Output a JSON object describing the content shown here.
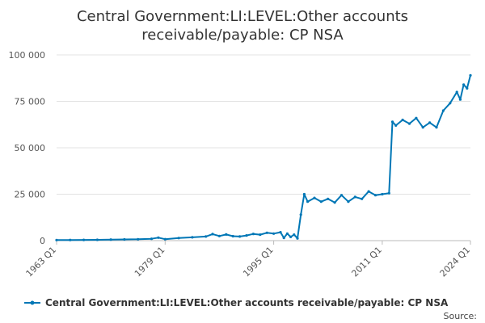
{
  "chart_data": {
    "type": "line",
    "title_lines": [
      "Central Government:LI:LEVEL:Other accounts",
      "receivable/payable: CP NSA"
    ],
    "xlabel": "",
    "ylabel": "",
    "x_tick_labels": [
      "1963 Q1",
      "1979 Q1",
      "1995 Q1",
      "2011 Q1",
      "2024 Q1"
    ],
    "y_tick_labels": [
      "0",
      "25 000",
      "50 000",
      "75 000",
      "100 000"
    ],
    "y_ticks": [
      0,
      25000,
      50000,
      75000,
      100000
    ],
    "ylim": [
      0,
      100000
    ],
    "xlim": [
      "1963 Q1",
      "2024 Q1"
    ],
    "grid": "horizontal",
    "legend_position": "bottom",
    "source_label": "Source:",
    "series": [
      {
        "name": "Central Government:LI:LEVEL:Other accounts receivable/payable: CP NSA",
        "color": "#0077b6",
        "points": [
          [
            "1963 Q1",
            300
          ],
          [
            "1965 Q1",
            350
          ],
          [
            "1967 Q1",
            400
          ],
          [
            "1969 Q1",
            450
          ],
          [
            "1971 Q1",
            550
          ],
          [
            "1973 Q1",
            650
          ],
          [
            "1975 Q1",
            750
          ],
          [
            "1977 Q1",
            1000
          ],
          [
            "1978 Q1",
            1600
          ],
          [
            "1979 Q1",
            800
          ],
          [
            "1981 Q1",
            1400
          ],
          [
            "1983 Q1",
            1800
          ],
          [
            "1985 Q1",
            2200
          ],
          [
            "1986 Q1",
            3500
          ],
          [
            "1987 Q1",
            2500
          ],
          [
            "1988 Q1",
            3300
          ],
          [
            "1989 Q1",
            2400
          ],
          [
            "1990 Q1",
            2200
          ],
          [
            "1991 Q1",
            2800
          ],
          [
            "1992 Q1",
            3600
          ],
          [
            "1993 Q1",
            3200
          ],
          [
            "1994 Q1",
            4200
          ],
          [
            "1995 Q1",
            3800
          ],
          [
            "1996 Q1",
            4500
          ],
          [
            "1996 Q3",
            1500
          ],
          [
            "1997 Q1",
            3800
          ],
          [
            "1997 Q3",
            2000
          ],
          [
            "1998 Q1",
            3200
          ],
          [
            "1998 Q3",
            1200
          ],
          [
            "1999 Q1",
            14000
          ],
          [
            "1999 Q3",
            25000
          ],
          [
            "2000 Q1",
            21000
          ],
          [
            "2001 Q1",
            23000
          ],
          [
            "2002 Q1",
            21000
          ],
          [
            "2003 Q1",
            22500
          ],
          [
            "2004 Q1",
            20500
          ],
          [
            "2005 Q1",
            24500
          ],
          [
            "2006 Q1",
            21000
          ],
          [
            "2007 Q1",
            23500
          ],
          [
            "2008 Q1",
            22500
          ],
          [
            "2009 Q1",
            26500
          ],
          [
            "2010 Q1",
            24500
          ],
          [
            "2011 Q1",
            25000
          ],
          [
            "2012 Q1",
            25500
          ],
          [
            "2012 Q3",
            64000
          ],
          [
            "2013 Q1",
            62000
          ],
          [
            "2014 Q1",
            65000
          ],
          [
            "2015 Q1",
            63000
          ],
          [
            "2016 Q1",
            66000
          ],
          [
            "2017 Q1",
            61000
          ],
          [
            "2018 Q1",
            63500
          ],
          [
            "2019 Q1",
            61000
          ],
          [
            "2020 Q1",
            70000
          ],
          [
            "2021 Q1",
            74000
          ],
          [
            "2022 Q1",
            80000
          ],
          [
            "2022 Q3",
            76000
          ],
          [
            "2023 Q1",
            84000
          ],
          [
            "2023 Q3",
            82000
          ],
          [
            "2024 Q1",
            89000
          ]
        ]
      }
    ]
  }
}
